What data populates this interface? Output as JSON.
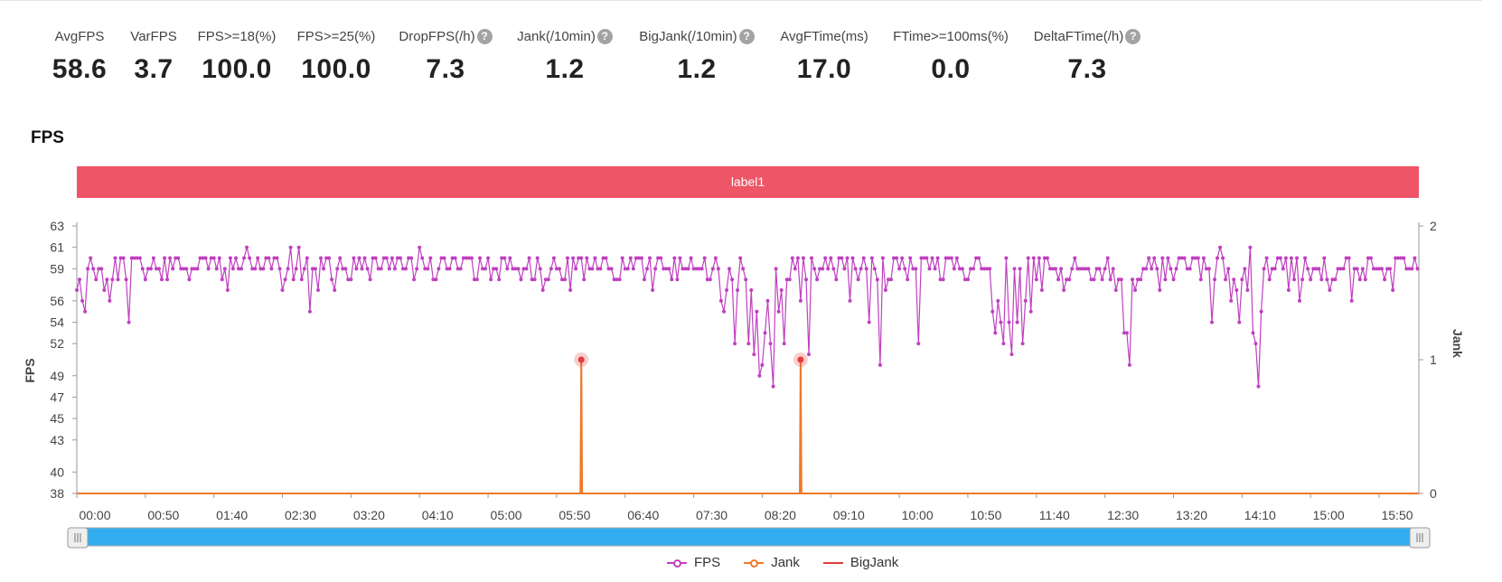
{
  "metrics": [
    {
      "label": "AvgFPS",
      "value": "58.6",
      "help": false
    },
    {
      "label": "VarFPS",
      "value": "3.7",
      "help": false
    },
    {
      "label": "FPS>=18(%)",
      "value": "100.0",
      "help": false
    },
    {
      "label": "FPS>=25(%)",
      "value": "100.0",
      "help": false
    },
    {
      "label": "DropFPS(/h)",
      "value": "7.3",
      "help": true
    },
    {
      "label": "Jank(/10min)",
      "value": "1.2",
      "help": true
    },
    {
      "label": "BigJank(/10min)",
      "value": "1.2",
      "help": true
    },
    {
      "label": "AvgFTime(ms)",
      "value": "17.0",
      "help": false
    },
    {
      "label": "FTime>=100ms(%)",
      "value": "0.0",
      "help": false
    },
    {
      "label": "DeltaFTime(/h)",
      "value": "7.3",
      "help": true
    }
  ],
  "help_glyph": "?",
  "chart_data": {
    "type": "line",
    "title": "FPS",
    "label_band": "label1",
    "xlabel": "",
    "ylabel": "FPS",
    "y2label": "Jank",
    "x_range_seconds": [
      0,
      979
    ],
    "x_ticks": [
      "00:00",
      "00:50",
      "01:40",
      "02:30",
      "03:20",
      "04:10",
      "05:00",
      "05:50",
      "06:40",
      "07:30",
      "08:20",
      "09:10",
      "10:00",
      "10:50",
      "11:40",
      "12:30",
      "13:20",
      "14:10",
      "15:00",
      "15:50"
    ],
    "y_ticks": [
      63,
      61,
      59,
      56,
      54,
      52,
      49,
      47,
      45,
      43,
      40,
      38
    ],
    "ylim": [
      38,
      63
    ],
    "y2_ticks": [
      2,
      1,
      0
    ],
    "y2lim": [
      0,
      2
    ],
    "series": [
      {
        "name": "FPS",
        "axis": "left",
        "color": "#c040c0",
        "points": "circle",
        "baseline": 59,
        "dips": [
          [
            0,
            57
          ],
          [
            1,
            55
          ],
          [
            3,
            58
          ],
          [
            5,
            56
          ],
          [
            7,
            55
          ],
          [
            20,
            57
          ],
          [
            25,
            56
          ],
          [
            38,
            54
          ],
          [
            62,
            58
          ],
          [
            80,
            59
          ],
          [
            110,
            57
          ],
          [
            112,
            60
          ],
          [
            113,
            61
          ],
          [
            115,
            59
          ],
          [
            125,
            61
          ],
          [
            138,
            60
          ],
          [
            150,
            57
          ],
          [
            152,
            58
          ],
          [
            156,
            61
          ],
          [
            158,
            58
          ],
          [
            160,
            59
          ],
          [
            162,
            61
          ],
          [
            165,
            58
          ],
          [
            170,
            55
          ],
          [
            174,
            59
          ],
          [
            176,
            57
          ],
          [
            188,
            57
          ],
          [
            190,
            59
          ],
          [
            192,
            60
          ],
          [
            200,
            58
          ],
          [
            210,
            60
          ],
          [
            215,
            58
          ],
          [
            220,
            59
          ],
          [
            230,
            60
          ],
          [
            240,
            59
          ],
          [
            246,
            58
          ],
          [
            250,
            61
          ],
          [
            255,
            59
          ],
          [
            260,
            58
          ],
          [
            270,
            59
          ],
          [
            290,
            58
          ],
          [
            300,
            60
          ],
          [
            305,
            59
          ],
          [
            320,
            59
          ],
          [
            330,
            60
          ],
          [
            335,
            58
          ],
          [
            340,
            57
          ],
          [
            345,
            58
          ],
          [
            350,
            59
          ],
          [
            360,
            57
          ],
          [
            365,
            59
          ],
          [
            370,
            58
          ],
          [
            380,
            59
          ],
          [
            395,
            58
          ],
          [
            400,
            59
          ],
          [
            410,
            60
          ],
          [
            415,
            58
          ],
          [
            420,
            57
          ],
          [
            445,
            59
          ],
          [
            450,
            59
          ],
          [
            460,
            58
          ],
          [
            470,
            56
          ],
          [
            473,
            55
          ],
          [
            475,
            57
          ],
          [
            478,
            58
          ],
          [
            480,
            52
          ],
          [
            482,
            57
          ],
          [
            486,
            59
          ],
          [
            488,
            58
          ],
          [
            490,
            52
          ],
          [
            492,
            57
          ],
          [
            494,
            51
          ],
          [
            496,
            55
          ],
          [
            498,
            49
          ],
          [
            500,
            50
          ],
          [
            502,
            53
          ],
          [
            504,
            56
          ],
          [
            506,
            52
          ],
          [
            508,
            48
          ],
          [
            510,
            59
          ],
          [
            512,
            55
          ],
          [
            515,
            57
          ],
          [
            517,
            52
          ],
          [
            520,
            58
          ],
          [
            525,
            59
          ],
          [
            528,
            56
          ],
          [
            532,
            58
          ],
          [
            535,
            51
          ],
          [
            540,
            58
          ],
          [
            548,
            59
          ],
          [
            555,
            58
          ],
          [
            560,
            59
          ],
          [
            565,
            56
          ],
          [
            570,
            58
          ],
          [
            578,
            54
          ],
          [
            582,
            59
          ],
          [
            586,
            50
          ],
          [
            590,
            57
          ],
          [
            595,
            58
          ],
          [
            600,
            59
          ],
          [
            606,
            58
          ],
          [
            610,
            59
          ],
          [
            615,
            52
          ],
          [
            622,
            59
          ],
          [
            630,
            58
          ],
          [
            640,
            59
          ],
          [
            650,
            58
          ],
          [
            660,
            59
          ],
          [
            668,
            55
          ],
          [
            670,
            53
          ],
          [
            673,
            56
          ],
          [
            675,
            54
          ],
          [
            677,
            52
          ],
          [
            680,
            54
          ],
          [
            683,
            51
          ],
          [
            686,
            54
          ],
          [
            690,
            52
          ],
          [
            693,
            56
          ],
          [
            696,
            55
          ],
          [
            700,
            58
          ],
          [
            705,
            57
          ],
          [
            710,
            59
          ],
          [
            720,
            57
          ],
          [
            725,
            58
          ],
          [
            730,
            59
          ],
          [
            740,
            58
          ],
          [
            750,
            59
          ],
          [
            758,
            57
          ],
          [
            762,
            58
          ],
          [
            765,
            53
          ],
          [
            767,
            53
          ],
          [
            769,
            50
          ],
          [
            772,
            57
          ],
          [
            780,
            59
          ],
          [
            790,
            57
          ],
          [
            800,
            58
          ],
          [
            810,
            59
          ],
          [
            820,
            58
          ],
          [
            828,
            54
          ],
          [
            832,
            60
          ],
          [
            835,
            61
          ],
          [
            838,
            58
          ],
          [
            842,
            56
          ],
          [
            844,
            58
          ],
          [
            846,
            57
          ],
          [
            848,
            54
          ],
          [
            850,
            58
          ],
          [
            855,
            57
          ],
          [
            857,
            61
          ],
          [
            858,
            53
          ],
          [
            860,
            52
          ],
          [
            862,
            48
          ],
          [
            864,
            55
          ],
          [
            870,
            58
          ],
          [
            880,
            59
          ],
          [
            885,
            57
          ],
          [
            888,
            58
          ],
          [
            892,
            56
          ],
          [
            895,
            58
          ],
          [
            905,
            59
          ],
          [
            910,
            60
          ],
          [
            914,
            57
          ],
          [
            918,
            58
          ],
          [
            925,
            59
          ],
          [
            930,
            56
          ],
          [
            935,
            59
          ],
          [
            940,
            58
          ],
          [
            950,
            59
          ],
          [
            955,
            58
          ],
          [
            958,
            59
          ],
          [
            960,
            57
          ],
          [
            965,
            60
          ],
          [
            970,
            59
          ],
          [
            979,
            59
          ]
        ]
      },
      {
        "name": "Jank",
        "axis": "right",
        "color": "#f07828",
        "spikes_seconds": [
          368,
          528
        ],
        "spike_value": 1
      },
      {
        "name": "BigJank",
        "axis": "right",
        "color": "#e23c3c",
        "spikes_seconds": [
          368,
          528
        ],
        "spike_value": 1
      }
    ],
    "legend": [
      "FPS",
      "Jank",
      "BigJank"
    ],
    "legend_position": "bottom-center"
  }
}
